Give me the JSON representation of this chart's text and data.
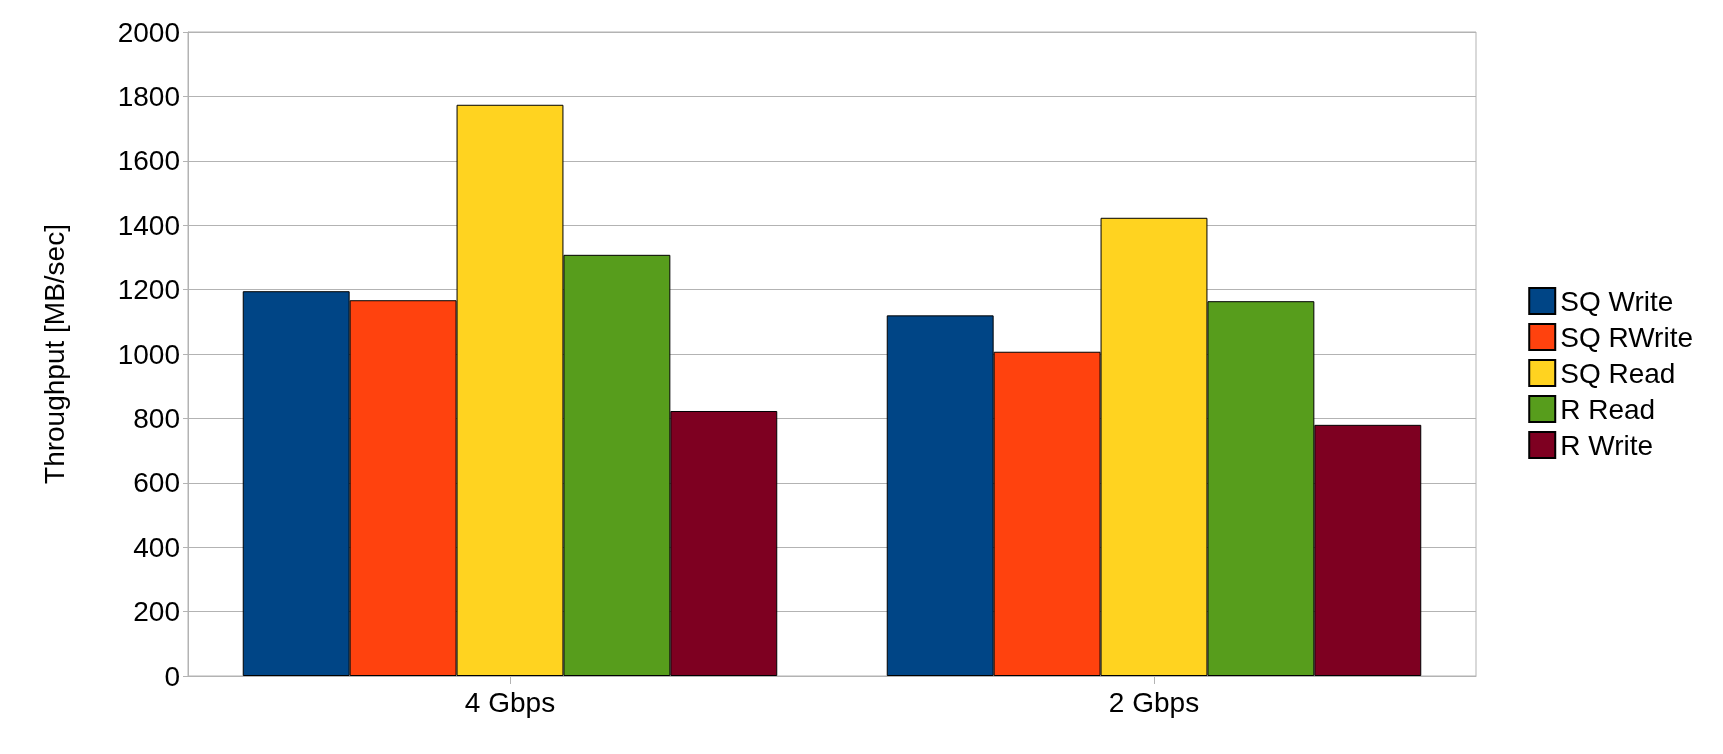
{
  "chart_data": {
    "type": "bar",
    "ylabel": "Throughput [MB/sec]",
    "categories": [
      "4 Gbps",
      "2 Gbps"
    ],
    "series": [
      {
        "name": "SQ Write",
        "color": "#004586",
        "values": [
          1195,
          1120
        ]
      },
      {
        "name": "SQ RWrite",
        "color": "#ff420e",
        "values": [
          1167,
          1007
        ]
      },
      {
        "name": "SQ Read",
        "color": "#ffd320",
        "values": [
          1774,
          1423
        ]
      },
      {
        "name": "R Read",
        "color": "#579d1c",
        "values": [
          1308,
          1164
        ]
      },
      {
        "name": "R Write",
        "color": "#7e0021",
        "values": [
          823,
          780
        ]
      }
    ],
    "ylim": [
      0,
      2000
    ],
    "yticks": [
      0,
      200,
      400,
      600,
      800,
      1000,
      1200,
      1400,
      1600,
      1800,
      2000
    ],
    "grid": "y",
    "legend": "right"
  }
}
